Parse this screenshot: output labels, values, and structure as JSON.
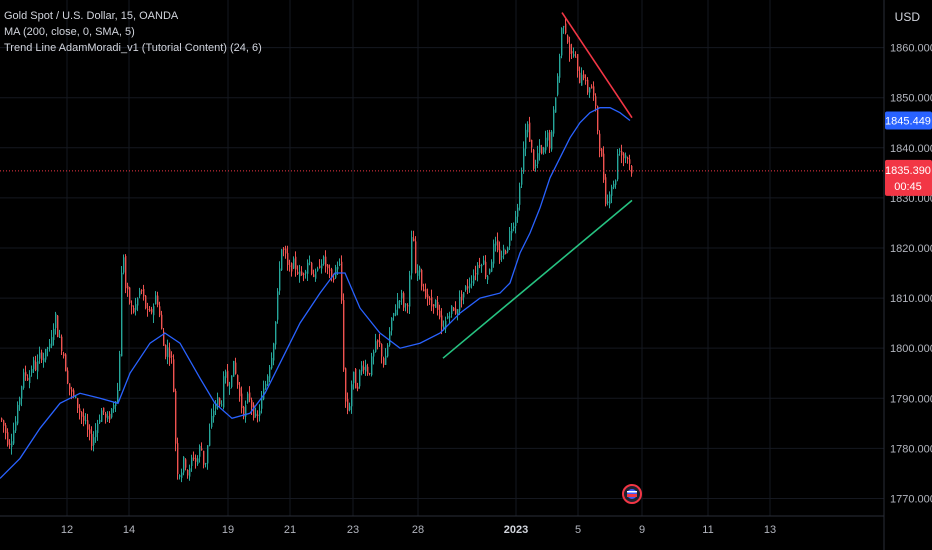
{
  "legend": {
    "symbol": "Gold Spot / U.S. Dollar, 15, OANDA",
    "ma": "MA (200, close, 0, SMA, 5)",
    "indicator": "Trend Line AdamMoradi_v1 (Tutorial Content) (24, 6)"
  },
  "currency": "USD",
  "colors": {
    "background": "#000000",
    "grid": "#151820",
    "candle_up": "#26a69a",
    "candle_down": "#ef5350",
    "ma_line": "#2962ff",
    "trend_support": "#26c281",
    "trend_resistance": "#f23645",
    "current_price_label": "#f23645",
    "ma_value_label": "#2962ff"
  },
  "chart_data": {
    "type": "candlestick",
    "y_axis": {
      "ylim": [
        1766.5,
        1869.5
      ],
      "ticks": [
        1770,
        1780,
        1790,
        1800,
        1810,
        1820,
        1830,
        1840,
        1850,
        1860
      ],
      "tick_labels": [
        "1770.000",
        "1780.000",
        "1790.000",
        "1800.000",
        "1810.000",
        "1820.000",
        "1830.000",
        "1840.000",
        "1850.000",
        "1860.000"
      ]
    },
    "x_axis": {
      "tick_labels": [
        "12",
        "14",
        "19",
        "21",
        "23",
        "28",
        "2023",
        "5",
        "9",
        "11",
        "13"
      ]
    },
    "close_path": [
      [
        0,
        1786
      ],
      [
        4,
        1784
      ],
      [
        8,
        1781
      ],
      [
        12,
        1783
      ],
      [
        16,
        1786
      ],
      [
        20,
        1792
      ],
      [
        24,
        1795
      ],
      [
        28,
        1794
      ],
      [
        32,
        1797
      ],
      [
        36,
        1796
      ],
      [
        40,
        1799
      ],
      [
        44,
        1798
      ],
      [
        48,
        1801
      ],
      [
        50,
        1799
      ],
      [
        52,
        1804
      ],
      [
        55,
        1806
      ],
      [
        58,
        1802
      ],
      [
        62,
        1800
      ],
      [
        66,
        1795
      ],
      [
        70,
        1791
      ],
      [
        74,
        1790
      ],
      [
        78,
        1788
      ],
      [
        82,
        1786
      ],
      [
        86,
        1784
      ],
      [
        90,
        1781
      ],
      [
        94,
        1783
      ],
      [
        98,
        1786
      ],
      [
        102,
        1788
      ],
      [
        106,
        1785
      ],
      [
        110,
        1787
      ],
      [
        114,
        1790
      ],
      [
        118,
        1792
      ],
      [
        122,
        1822
      ],
      [
        125,
        1812
      ],
      [
        128,
        1810
      ],
      [
        132,
        1807
      ],
      [
        136,
        1809
      ],
      [
        140,
        1812
      ],
      [
        144,
        1809
      ],
      [
        148,
        1806
      ],
      [
        152,
        1808
      ],
      [
        156,
        1811
      ],
      [
        160,
        1805
      ],
      [
        164,
        1799
      ],
      [
        168,
        1800
      ],
      [
        172,
        1797
      ],
      [
        176,
        1776
      ],
      [
        180,
        1775
      ],
      [
        184,
        1778
      ],
      [
        188,
        1774
      ],
      [
        192,
        1779
      ],
      [
        196,
        1777
      ],
      [
        200,
        1781
      ],
      [
        204,
        1776
      ],
      [
        208,
        1782
      ],
      [
        212,
        1787
      ],
      [
        216,
        1790
      ],
      [
        220,
        1788
      ],
      [
        224,
        1795
      ],
      [
        228,
        1792
      ],
      [
        232,
        1797
      ],
      [
        236,
        1794
      ],
      [
        240,
        1789
      ],
      [
        244,
        1787
      ],
      [
        248,
        1791
      ],
      [
        252,
        1788
      ],
      [
        256,
        1785
      ],
      [
        260,
        1789
      ],
      [
        264,
        1792
      ],
      [
        268,
        1796
      ],
      [
        272,
        1800
      ],
      [
        276,
        1807
      ],
      [
        280,
        1820
      ],
      [
        284,
        1819
      ],
      [
        288,
        1815
      ],
      [
        292,
        1817
      ],
      [
        296,
        1816
      ],
      [
        300,
        1814
      ],
      [
        304,
        1816
      ],
      [
        308,
        1818
      ],
      [
        312,
        1815
      ],
      [
        316,
        1814
      ],
      [
        320,
        1818
      ],
      [
        324,
        1817
      ],
      [
        328,
        1815
      ],
      [
        332,
        1813
      ],
      [
        336,
        1817
      ],
      [
        340,
        1816
      ],
      [
        344,
        1790
      ],
      [
        348,
        1787
      ],
      [
        352,
        1795
      ],
      [
        356,
        1792
      ],
      [
        360,
        1796
      ],
      [
        364,
        1797
      ],
      [
        368,
        1795
      ],
      [
        372,
        1798
      ],
      [
        376,
        1801
      ],
      [
        380,
        1800
      ],
      [
        384,
        1796
      ],
      [
        388,
        1802
      ],
      [
        392,
        1806
      ],
      [
        396,
        1809
      ],
      [
        400,
        1811
      ],
      [
        404,
        1808
      ],
      [
        408,
        1810
      ],
      [
        412,
        1825
      ],
      [
        415,
        1814
      ],
      [
        418,
        1816
      ],
      [
        422,
        1812
      ],
      [
        426,
        1811
      ],
      [
        430,
        1808
      ],
      [
        434,
        1810
      ],
      [
        438,
        1806
      ],
      [
        442,
        1803
      ],
      [
        446,
        1806
      ],
      [
        450,
        1808
      ],
      [
        454,
        1807
      ],
      [
        458,
        1809
      ],
      [
        462,
        1811
      ],
      [
        466,
        1812
      ],
      [
        470,
        1814
      ],
      [
        474,
        1815
      ],
      [
        478,
        1817
      ],
      [
        482,
        1818
      ],
      [
        486,
        1814
      ],
      [
        490,
        1817
      ],
      [
        494,
        1821
      ],
      [
        498,
        1818
      ],
      [
        502,
        1819
      ],
      [
        506,
        1820
      ],
      [
        510,
        1824
      ],
      [
        514,
        1826
      ],
      [
        518,
        1830
      ],
      [
        522,
        1838
      ],
      [
        526,
        1845
      ],
      [
        530,
        1841
      ],
      [
        534,
        1835
      ],
      [
        538,
        1840
      ],
      [
        542,
        1838
      ],
      [
        546,
        1843
      ],
      [
        550,
        1840
      ],
      [
        554,
        1849
      ],
      [
        558,
        1856
      ],
      [
        562,
        1866
      ],
      [
        566,
        1863
      ],
      [
        570,
        1858
      ],
      [
        574,
        1859
      ],
      [
        578,
        1853
      ],
      [
        582,
        1856
      ],
      [
        586,
        1851
      ],
      [
        590,
        1853
      ],
      [
        594,
        1849
      ],
      [
        598,
        1842
      ],
      [
        602,
        1836
      ],
      [
        606,
        1828
      ],
      [
        610,
        1833
      ],
      [
        614,
        1832
      ],
      [
        618,
        1841
      ],
      [
        622,
        1838
      ],
      [
        626,
        1839
      ],
      [
        630,
        1836
      ],
      [
        632,
        1835.39
      ]
    ],
    "ma_path": [
      [
        0,
        1774
      ],
      [
        20,
        1778
      ],
      [
        40,
        1784
      ],
      [
        60,
        1789
      ],
      [
        80,
        1791
      ],
      [
        100,
        1790
      ],
      [
        118,
        1789
      ],
      [
        130,
        1795
      ],
      [
        150,
        1801
      ],
      [
        165,
        1803
      ],
      [
        180,
        1801
      ],
      [
        200,
        1794
      ],
      [
        215,
        1789
      ],
      [
        232,
        1786
      ],
      [
        250,
        1787
      ],
      [
        265,
        1791
      ],
      [
        280,
        1797
      ],
      [
        300,
        1805
      ],
      [
        320,
        1811
      ],
      [
        335,
        1815
      ],
      [
        345,
        1815
      ],
      [
        360,
        1808
      ],
      [
        380,
        1803
      ],
      [
        400,
        1800
      ],
      [
        420,
        1801
      ],
      [
        440,
        1803
      ],
      [
        460,
        1807
      ],
      [
        480,
        1810
      ],
      [
        500,
        1811
      ],
      [
        510,
        1813
      ],
      [
        520,
        1819
      ],
      [
        530,
        1823
      ],
      [
        540,
        1828
      ],
      [
        550,
        1834
      ],
      [
        560,
        1838
      ],
      [
        570,
        1842
      ],
      [
        580,
        1845
      ],
      [
        590,
        1847
      ],
      [
        600,
        1848
      ],
      [
        610,
        1848
      ],
      [
        620,
        1847
      ],
      [
        630,
        1845.449
      ]
    ],
    "trend_support": {
      "start": [
        443,
        1798
      ],
      "end": [
        632,
        1829.5
      ]
    },
    "trend_resistance": {
      "start": [
        562,
        1867
      ],
      "end": [
        632,
        1846
      ]
    },
    "current_price": {
      "value": 1835.39,
      "label": "1835.390",
      "countdown": "00:45"
    },
    "ma_value": {
      "value": 1845.449,
      "label": "1845.449"
    }
  }
}
